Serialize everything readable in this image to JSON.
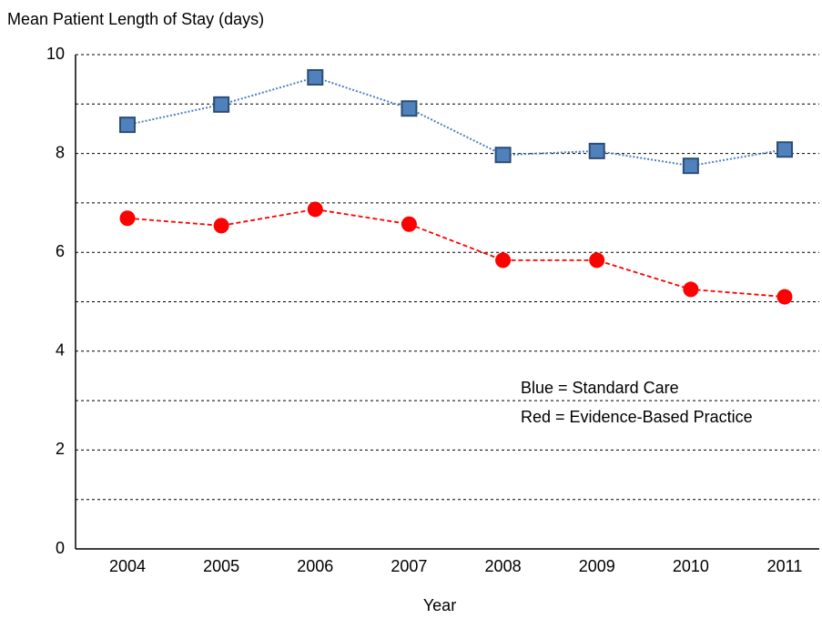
{
  "chart_data": {
    "type": "line",
    "title": "Mean Patient Length of Stay (days)",
    "x_label": "Year",
    "categories": [
      "2004",
      "2005",
      "2006",
      "2007",
      "2008",
      "2009",
      "2010",
      "2011"
    ],
    "series": [
      {
        "name": "Blue = Standard Care",
        "color": "#4f81bd",
        "marker": "square",
        "line_style": "dotted",
        "values": [
          8.58,
          8.99,
          9.54,
          8.91,
          7.97,
          8.05,
          7.75,
          8.08
        ]
      },
      {
        "name": "Red = Evidence-Based Practice",
        "color": "#ff0000",
        "marker": "circle",
        "line_style": "dashed",
        "values": [
          6.69,
          6.54,
          6.87,
          6.57,
          5.84,
          5.84,
          5.25,
          5.1
        ]
      }
    ],
    "ylim": [
      0,
      10
    ],
    "yticks": [
      0,
      2,
      4,
      6,
      8,
      10
    ],
    "minor_yticks": [
      1,
      3,
      5,
      7,
      9
    ],
    "grid": true
  }
}
